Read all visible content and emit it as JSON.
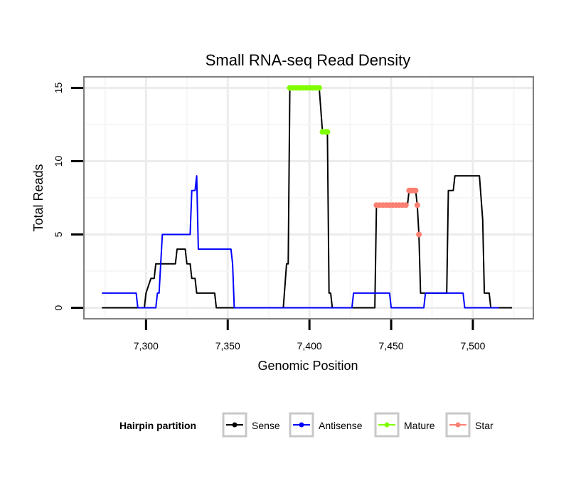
{
  "chart_data": {
    "type": "line",
    "title": "Small RNA-seq Read Density",
    "xlabel": "Genomic Position",
    "ylabel": "Total Reads",
    "xlim": [
      7262,
      7537
    ],
    "ylim": [
      -0.75,
      15.75
    ],
    "x_ticks": [
      7300,
      7350,
      7400,
      7450,
      7500
    ],
    "x_tick_labels": [
      "7,300",
      "7,350",
      "7,400",
      "7,450",
      "7,500"
    ],
    "y_ticks": [
      0,
      5,
      10,
      15
    ],
    "y_tick_labels": [
      "0",
      "5",
      "10",
      "15"
    ],
    "grid": true,
    "legend": {
      "title": "Hairpin partition",
      "position": "bottom",
      "entries": [
        "Sense",
        "Antisense",
        "Mature",
        "Star"
      ]
    },
    "series": [
      {
        "name": "Sense",
        "color": "#000000",
        "style": "line",
        "points": [
          [
            7273,
            0
          ],
          [
            7299,
            0
          ],
          [
            7300,
            1
          ],
          [
            7303,
            2
          ],
          [
            7305,
            2
          ],
          [
            7306,
            3
          ],
          [
            7318,
            3
          ],
          [
            7319,
            4
          ],
          [
            7324,
            4
          ],
          [
            7325,
            3
          ],
          [
            7327,
            3
          ],
          [
            7328,
            2
          ],
          [
            7330,
            2
          ],
          [
            7331,
            1
          ],
          [
            7342,
            1
          ],
          [
            7343,
            0
          ],
          [
            7384,
            0
          ],
          [
            7386,
            3
          ],
          [
            7387,
            3
          ],
          [
            7388,
            15
          ],
          [
            7406,
            15
          ],
          [
            7408,
            12
          ],
          [
            7411,
            12
          ],
          [
            7412,
            1
          ],
          [
            7413,
            1
          ],
          [
            7414,
            0
          ],
          [
            7440,
            0
          ],
          [
            7441,
            7
          ],
          [
            7460,
            7
          ],
          [
            7461,
            8
          ],
          [
            7465,
            8
          ],
          [
            7466,
            7
          ],
          [
            7467,
            5
          ],
          [
            7468,
            1
          ],
          [
            7484,
            1
          ],
          [
            7485,
            8
          ],
          [
            7488,
            8
          ],
          [
            7489,
            9
          ],
          [
            7504,
            9
          ],
          [
            7506,
            6
          ],
          [
            7507,
            1
          ],
          [
            7510,
            1
          ],
          [
            7511,
            0
          ],
          [
            7524,
            0
          ]
        ]
      },
      {
        "name": "Antisense",
        "color": "#0000ff",
        "style": "line",
        "points": [
          [
            7273,
            1
          ],
          [
            7294,
            1
          ],
          [
            7295,
            0
          ],
          [
            7306,
            0
          ],
          [
            7307,
            1
          ],
          [
            7308,
            1
          ],
          [
            7310,
            5
          ],
          [
            7327,
            5
          ],
          [
            7328,
            8
          ],
          [
            7330,
            8
          ],
          [
            7331,
            9
          ],
          [
            7332,
            4
          ],
          [
            7352,
            4
          ],
          [
            7353,
            3
          ],
          [
            7354,
            0
          ],
          [
            7426,
            0
          ],
          [
            7427,
            1
          ],
          [
            7449,
            1
          ],
          [
            7450,
            0
          ],
          [
            7470,
            0
          ],
          [
            7471,
            1
          ],
          [
            7494,
            1
          ],
          [
            7495,
            0
          ],
          [
            7516,
            0
          ]
        ]
      },
      {
        "name": "Mature",
        "color": "#7fff00",
        "style": "points",
        "points": [
          [
            7388,
            15
          ],
          [
            7390,
            15
          ],
          [
            7392,
            15
          ],
          [
            7394,
            15
          ],
          [
            7396,
            15
          ],
          [
            7398,
            15
          ],
          [
            7400,
            15
          ],
          [
            7402,
            15
          ],
          [
            7404,
            15
          ],
          [
            7406,
            15
          ],
          [
            7408,
            12
          ],
          [
            7410,
            12
          ],
          [
            7411,
            12
          ]
        ]
      },
      {
        "name": "Star",
        "color": "#fa8072",
        "style": "points",
        "points": [
          [
            7441,
            7
          ],
          [
            7443,
            7
          ],
          [
            7445,
            7
          ],
          [
            7447,
            7
          ],
          [
            7449,
            7
          ],
          [
            7451,
            7
          ],
          [
            7453,
            7
          ],
          [
            7455,
            7
          ],
          [
            7457,
            7
          ],
          [
            7459,
            7
          ],
          [
            7461,
            8
          ],
          [
            7462,
            8
          ],
          [
            7463,
            8
          ],
          [
            7464,
            8
          ],
          [
            7465,
            8
          ],
          [
            7466,
            7
          ],
          [
            7467,
            5
          ]
        ]
      }
    ]
  }
}
